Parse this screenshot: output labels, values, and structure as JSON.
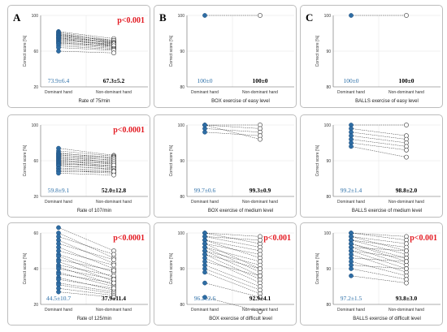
{
  "figure": {
    "chart_data": [
      {
        "type": "line",
        "panel_letter": "A",
        "p_value": "p<0.001",
        "title": "Rate of 75/min",
        "ylabel": "Correct score [%]",
        "categories": [
          "Dominant hand",
          "Non-dominant hand"
        ],
        "ylim": [
          20,
          100
        ],
        "yticks": [
          20,
          60,
          100
        ],
        "stats": {
          "dominant": "73.9±6.4",
          "non_dominant": "67.3±5.2"
        },
        "pairs": [
          [
            82,
            74
          ],
          [
            81,
            72
          ],
          [
            80,
            70
          ],
          [
            79,
            71
          ],
          [
            78,
            69
          ],
          [
            78,
            72
          ],
          [
            77,
            68
          ],
          [
            76,
            70
          ],
          [
            75,
            66
          ],
          [
            75,
            69
          ],
          [
            74,
            67
          ],
          [
            73,
            66
          ],
          [
            72,
            68
          ],
          [
            71,
            65
          ],
          [
            70,
            64
          ],
          [
            69,
            66
          ],
          [
            68,
            63
          ],
          [
            66,
            62
          ],
          [
            64,
            61
          ],
          [
            60,
            58
          ]
        ]
      },
      {
        "type": "line",
        "panel_letter": "B",
        "p_value": "",
        "title": "BOX exercise of easy level",
        "ylabel": "Correct score [%]",
        "categories": [
          "Dominant hand",
          "Non-dominant hand"
        ],
        "ylim": [
          80,
          100
        ],
        "yticks": [
          80,
          90,
          100
        ],
        "stats": {
          "dominant": "100±0",
          "non_dominant": "100±0"
        },
        "pairs": [
          [
            100,
            100
          ]
        ]
      },
      {
        "type": "line",
        "panel_letter": "C",
        "p_value": "",
        "title": "BALLS exercise of easy level",
        "ylabel": "Correct score [%]",
        "categories": [
          "Dominant hand",
          "Non-dominant hand"
        ],
        "ylim": [
          80,
          100
        ],
        "yticks": [
          80,
          90,
          100
        ],
        "stats": {
          "dominant": "100±0",
          "non_dominant": "100±0"
        },
        "pairs": [
          [
            100,
            100
          ]
        ]
      },
      {
        "type": "line",
        "panel_letter": "",
        "p_value": "p<0.0001",
        "title": "Rate of 107/min",
        "ylabel": "Correct score [%]",
        "categories": [
          "Dominant hand",
          "Non-dominant hand"
        ],
        "ylim": [
          20,
          100
        ],
        "yticks": [
          20,
          60,
          100
        ],
        "stats": {
          "dominant": "59.8±9.1",
          "non_dominant": "52.0±12.8"
        },
        "pairs": [
          [
            74,
            66
          ],
          [
            71,
            65
          ],
          [
            69,
            62
          ],
          [
            68,
            64
          ],
          [
            67,
            60
          ],
          [
            66,
            63
          ],
          [
            65,
            58
          ],
          [
            64,
            61
          ],
          [
            63,
            57
          ],
          [
            62,
            59
          ],
          [
            61,
            56
          ],
          [
            60,
            54
          ],
          [
            59,
            57
          ],
          [
            58,
            53
          ],
          [
            57,
            52
          ],
          [
            56,
            55
          ],
          [
            55,
            50
          ],
          [
            54,
            51
          ],
          [
            52,
            49
          ],
          [
            51,
            47
          ],
          [
            49,
            46
          ],
          [
            48,
            48
          ],
          [
            46,
            44
          ]
        ]
      },
      {
        "type": "line",
        "panel_letter": "",
        "p_value": "",
        "title": "BOX exercise of medium level",
        "ylabel": "Correct score [%]",
        "categories": [
          "Dominant hand",
          "Non-dominant hand"
        ],
        "ylim": [
          80,
          100
        ],
        "yticks": [
          80,
          90,
          100
        ],
        "stats": {
          "dominant": "99.7±0.6",
          "non_dominant": "99.3±0.9"
        },
        "pairs": [
          [
            100,
            100
          ],
          [
            100,
            99
          ],
          [
            99,
            98
          ],
          [
            98,
            97
          ],
          [
            100,
            96
          ]
        ]
      },
      {
        "type": "line",
        "panel_letter": "",
        "p_value": "",
        "title": "BALLS exercise of medium level",
        "ylabel": "Correct score [%]",
        "categories": [
          "Dominant hand",
          "Non-dominant hand"
        ],
        "ylim": [
          80,
          100
        ],
        "yticks": [
          80,
          90,
          100
        ],
        "stats": {
          "dominant": "99.2±1.4",
          "non_dominant": "98.8±2.0"
        },
        "pairs": [
          [
            100,
            100
          ],
          [
            99,
            97
          ],
          [
            98,
            96
          ],
          [
            97,
            95
          ],
          [
            96,
            94
          ],
          [
            95,
            93
          ],
          [
            94,
            91
          ]
        ]
      },
      {
        "type": "line",
        "panel_letter": "",
        "p_value": "p<0.0001",
        "title": "Rate of 125/min",
        "ylabel": "Correct score [%]",
        "categories": [
          "Dominant hand",
          "Non-dominant hand"
        ],
        "ylim": [
          20,
          60
        ],
        "yticks": [
          20,
          40,
          60
        ],
        "stats": {
          "dominant": "44.5±10.7",
          "non_dominant": "37.9±11.4"
        },
        "pairs": [
          [
            63,
            50
          ],
          [
            60,
            46
          ],
          [
            58,
            48
          ],
          [
            56,
            43
          ],
          [
            54,
            45
          ],
          [
            52,
            40
          ],
          [
            50,
            42
          ],
          [
            48,
            38
          ],
          [
            47,
            35
          ],
          [
            45,
            39
          ],
          [
            44,
            33
          ],
          [
            42,
            36
          ],
          [
            41,
            31
          ],
          [
            40,
            34
          ],
          [
            38,
            30
          ],
          [
            37,
            32
          ],
          [
            35,
            28
          ],
          [
            34,
            29
          ],
          [
            32,
            27
          ],
          [
            31,
            26
          ],
          [
            29,
            25
          ],
          [
            27,
            24
          ]
        ]
      },
      {
        "type": "line",
        "panel_letter": "",
        "p_value": "p<0.001",
        "title": "BOX exercise of difficult  level",
        "ylabel": "Correct score [%]",
        "categories": [
          "Dominant hand",
          "Non-dominant hand"
        ],
        "ylim": [
          80,
          100
        ],
        "yticks": [
          80,
          90,
          100
        ],
        "stats": {
          "dominant": "96.2±2.6",
          "non_dominant": "92.9±4.1"
        },
        "pairs": [
          [
            100,
            99
          ],
          [
            100,
            97
          ],
          [
            99,
            96
          ],
          [
            99,
            98
          ],
          [
            98,
            95
          ],
          [
            98,
            93
          ],
          [
            97,
            94
          ],
          [
            97,
            90
          ],
          [
            96,
            92
          ],
          [
            96,
            89
          ],
          [
            95,
            91
          ],
          [
            95,
            88
          ],
          [
            94,
            87
          ],
          [
            94,
            90
          ],
          [
            93,
            86
          ],
          [
            92,
            88
          ],
          [
            91,
            85
          ],
          [
            90,
            84
          ],
          [
            89,
            83
          ],
          [
            86,
            82
          ],
          [
            82,
            78
          ]
        ]
      },
      {
        "type": "line",
        "panel_letter": "",
        "p_value": "p<0.001",
        "title": "BALLS exercise of difficult  level",
        "ylabel": "Correct score [%]",
        "categories": [
          "Dominant hand",
          "Non-dominant hand"
        ],
        "ylim": [
          80,
          100
        ],
        "yticks": [
          80,
          90,
          100
        ],
        "stats": {
          "dominant": "97.2±1.5",
          "non_dominant": "93.8±3.0"
        },
        "pairs": [
          [
            100,
            99
          ],
          [
            100,
            98
          ],
          [
            99,
            97
          ],
          [
            99,
            95
          ],
          [
            98,
            96
          ],
          [
            98,
            94
          ],
          [
            97,
            93
          ],
          [
            97,
            92
          ],
          [
            96,
            95
          ],
          [
            96,
            91
          ],
          [
            95,
            90
          ],
          [
            95,
            93
          ],
          [
            94,
            89
          ],
          [
            93,
            92
          ],
          [
            92,
            88
          ],
          [
            91,
            90
          ],
          [
            90,
            87
          ],
          [
            88,
            86
          ]
        ]
      }
    ]
  }
}
